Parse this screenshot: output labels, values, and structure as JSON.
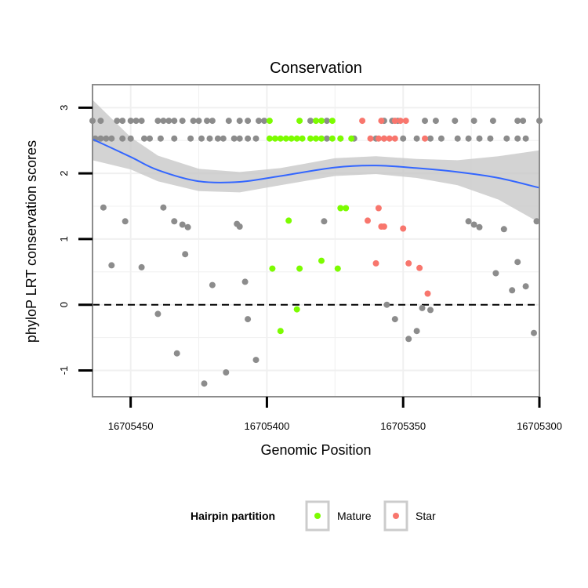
{
  "chart_data": {
    "type": "scatter",
    "title": "Conservation",
    "xlabel": "Genomic Position",
    "ylabel": "phyloP LRT conservation scores",
    "xlim": [
      16705300,
      16705464
    ],
    "x_reversed": true,
    "ylim": [
      -1.4,
      3.35
    ],
    "x_ticks": [
      16705450,
      16705400,
      16705350,
      16705300
    ],
    "x_tick_labels": [
      "16705450",
      "16705400",
      "16705350",
      "16705300"
    ],
    "y_ticks": [
      -1,
      0,
      1,
      2,
      3
    ],
    "y_tick_labels": [
      "-1",
      "0",
      "1",
      "2",
      "3"
    ],
    "reference_line": {
      "y": 0,
      "style": "dashed"
    },
    "colors": {
      "Other": "#8c8c8c",
      "Mature": "#7cfc00",
      "Star": "#f8766d",
      "smooth": "#3366ff",
      "ribbon": "#c8c8c8",
      "panel_border": "#8c8c8c",
      "grid": "#f0f0f0"
    },
    "legend": {
      "title": "Hairpin partition",
      "position": "bottom",
      "entries": [
        {
          "label": "Mature",
          "group": "Mature"
        },
        {
          "label": "Star",
          "group": "Star"
        }
      ]
    },
    "smooth": {
      "x": [
        16705464,
        16705450,
        16705440,
        16705425,
        16705410,
        16705395,
        16705375,
        16705360,
        16705345,
        16705330,
        16705315,
        16705300
      ],
      "y": [
        2.52,
        2.25,
        2.05,
        1.88,
        1.87,
        1.96,
        2.09,
        2.12,
        2.08,
        2.02,
        1.93,
        1.78
      ],
      "lower": [
        2.2,
        2.06,
        1.88,
        1.73,
        1.71,
        1.82,
        1.96,
        1.99,
        1.93,
        1.82,
        1.6,
        1.25
      ],
      "upper": [
        3.12,
        2.55,
        2.27,
        2.07,
        2.02,
        2.08,
        2.23,
        2.26,
        2.22,
        2.2,
        2.26,
        2.35
      ]
    },
    "series": [
      {
        "name": "Other",
        "points": [
          [
            16705464,
            2.8
          ],
          [
            16705461,
            2.8
          ],
          [
            16705455,
            2.8
          ],
          [
            16705453,
            2.8
          ],
          [
            16705450,
            2.8
          ],
          [
            16705448,
            2.8
          ],
          [
            16705446,
            2.8
          ],
          [
            16705440,
            2.8
          ],
          [
            16705438,
            2.8
          ],
          [
            16705436,
            2.8
          ],
          [
            16705434,
            2.8
          ],
          [
            16705431,
            2.8
          ],
          [
            16705427,
            2.8
          ],
          [
            16705425,
            2.8
          ],
          [
            16705422,
            2.8
          ],
          [
            16705420,
            2.8
          ],
          [
            16705414,
            2.8
          ],
          [
            16705410,
            2.8
          ],
          [
            16705407,
            2.8
          ],
          [
            16705403,
            2.8
          ],
          [
            16705401,
            2.8
          ],
          [
            16705384,
            2.8
          ],
          [
            16705378,
            2.8
          ],
          [
            16705357,
            2.8
          ],
          [
            16705354,
            2.8
          ],
          [
            16705352,
            2.8
          ],
          [
            16705342,
            2.8
          ],
          [
            16705338,
            2.8
          ],
          [
            16705331,
            2.8
          ],
          [
            16705324,
            2.8
          ],
          [
            16705317,
            2.8
          ],
          [
            16705308,
            2.8
          ],
          [
            16705306,
            2.8
          ],
          [
            16705300,
            2.8
          ],
          [
            16705463,
            2.53
          ],
          [
            16705461,
            2.53
          ],
          [
            16705459,
            2.53
          ],
          [
            16705457,
            2.53
          ],
          [
            16705453,
            2.53
          ],
          [
            16705450,
            2.53
          ],
          [
            16705445,
            2.53
          ],
          [
            16705443,
            2.53
          ],
          [
            16705439,
            2.53
          ],
          [
            16705434,
            2.53
          ],
          [
            16705428,
            2.53
          ],
          [
            16705424,
            2.53
          ],
          [
            16705421,
            2.53
          ],
          [
            16705418,
            2.53
          ],
          [
            16705416,
            2.53
          ],
          [
            16705412,
            2.53
          ],
          [
            16705410,
            2.53
          ],
          [
            16705407,
            2.53
          ],
          [
            16705404,
            2.53
          ],
          [
            16705378,
            2.53
          ],
          [
            16705373,
            2.53
          ],
          [
            16705368,
            2.53
          ],
          [
            16705360,
            2.53
          ],
          [
            16705357,
            2.53
          ],
          [
            16705350,
            2.53
          ],
          [
            16705345,
            2.53
          ],
          [
            16705340,
            2.53
          ],
          [
            16705336,
            2.53
          ],
          [
            16705330,
            2.53
          ],
          [
            16705326,
            2.53
          ],
          [
            16705322,
            2.53
          ],
          [
            16705318,
            2.53
          ],
          [
            16705312,
            2.53
          ],
          [
            16705308,
            2.53
          ],
          [
            16705305,
            2.53
          ],
          [
            16705460,
            1.48
          ],
          [
            16705457,
            0.6
          ],
          [
            16705452,
            1.27
          ],
          [
            16705446,
            0.57
          ],
          [
            16705440,
            -0.14
          ],
          [
            16705438,
            1.48
          ],
          [
            16705434,
            1.27
          ],
          [
            16705433,
            -0.74
          ],
          [
            16705431,
            1.22
          ],
          [
            16705430,
            0.77
          ],
          [
            16705429,
            1.18
          ],
          [
            16705423,
            -1.2
          ],
          [
            16705420,
            0.3
          ],
          [
            16705415,
            -1.03
          ],
          [
            16705411,
            1.23
          ],
          [
            16705410,
            1.19
          ],
          [
            16705408,
            0.35
          ],
          [
            16705407,
            -0.22
          ],
          [
            16705404,
            -0.84
          ],
          [
            16705379,
            1.27
          ],
          [
            16705356,
            0.0
          ],
          [
            16705353,
            -0.22
          ],
          [
            16705348,
            -0.52
          ],
          [
            16705345,
            -0.4
          ],
          [
            16705343,
            -0.05
          ],
          [
            16705340,
            -0.08
          ],
          [
            16705326,
            1.27
          ],
          [
            16705324,
            1.22
          ],
          [
            16705322,
            1.18
          ],
          [
            16705316,
            0.48
          ],
          [
            16705313,
            1.15
          ],
          [
            16705310,
            0.22
          ],
          [
            16705308,
            0.65
          ],
          [
            16705305,
            0.28
          ],
          [
            16705302,
            -0.43
          ],
          [
            16705301,
            1.27
          ]
        ]
      },
      {
        "name": "Mature",
        "points": [
          [
            16705399,
            2.8
          ],
          [
            16705388,
            2.8
          ],
          [
            16705382,
            2.8
          ],
          [
            16705380,
            2.8
          ],
          [
            16705376,
            2.8
          ],
          [
            16705399,
            2.53
          ],
          [
            16705397,
            2.53
          ],
          [
            16705395,
            2.53
          ],
          [
            16705393,
            2.53
          ],
          [
            16705391,
            2.53
          ],
          [
            16705389,
            2.53
          ],
          [
            16705387,
            2.53
          ],
          [
            16705384,
            2.53
          ],
          [
            16705382,
            2.53
          ],
          [
            16705380,
            2.53
          ],
          [
            16705376,
            2.53
          ],
          [
            16705373,
            2.53
          ],
          [
            16705369,
            2.53
          ],
          [
            16705398,
            0.55
          ],
          [
            16705395,
            -0.4
          ],
          [
            16705392,
            1.28
          ],
          [
            16705389,
            -0.07
          ],
          [
            16705388,
            0.55
          ],
          [
            16705380,
            0.67
          ],
          [
            16705374,
            0.55
          ],
          [
            16705373,
            1.47
          ],
          [
            16705371,
            1.47
          ]
        ]
      },
      {
        "name": "Star",
        "points": [
          [
            16705365,
            2.8
          ],
          [
            16705358,
            2.8
          ],
          [
            16705353,
            2.8
          ],
          [
            16705351,
            2.8
          ],
          [
            16705349,
            2.8
          ],
          [
            16705362,
            2.53
          ],
          [
            16705359,
            2.53
          ],
          [
            16705357,
            2.53
          ],
          [
            16705355,
            2.53
          ],
          [
            16705353,
            2.53
          ],
          [
            16705342,
            2.53
          ],
          [
            16705363,
            1.28
          ],
          [
            16705360,
            0.63
          ],
          [
            16705359,
            1.47
          ],
          [
            16705358,
            1.19
          ],
          [
            16705357,
            1.19
          ],
          [
            16705350,
            1.16
          ],
          [
            16705348,
            0.63
          ],
          [
            16705344,
            0.56
          ],
          [
            16705341,
            0.17
          ]
        ]
      }
    ]
  }
}
